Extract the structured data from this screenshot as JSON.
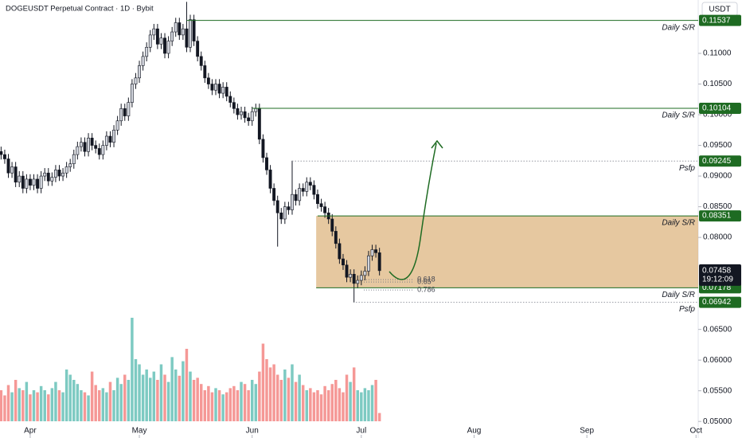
{
  "chart_data": {
    "type": "candlestick",
    "title": "DOGEUSDT Perpetual Contract · 1D · Bybit",
    "unit": "USDT",
    "countdown": "19:12:09",
    "up_color": "#d1d4dc",
    "down_color": "#131722",
    "volume_up_color": "#26a69a",
    "volume_down_color": "#ef5350",
    "grid": false,
    "x": [
      -8,
      -7,
      -6,
      -5,
      -4,
      -3,
      -2,
      -1,
      0,
      1,
      2,
      3,
      4,
      5,
      6,
      7,
      8,
      9,
      10,
      11,
      12,
      13,
      14,
      15,
      16,
      17,
      18,
      19,
      20,
      21,
      22,
      23,
      24,
      25,
      26,
      27,
      28,
      29,
      30,
      31,
      32,
      33,
      34,
      35,
      36,
      37,
      38,
      39,
      40,
      41,
      42,
      43,
      44,
      45,
      46,
      47,
      48,
      49,
      50,
      51,
      52,
      53,
      54,
      55,
      56,
      57,
      58,
      59,
      60,
      61,
      62,
      63,
      64,
      65,
      66,
      67,
      68,
      69,
      70,
      71,
      72,
      73,
      74,
      75,
      76,
      77,
      78,
      79,
      80,
      81,
      82,
      83,
      84,
      85,
      86,
      87,
      88,
      89,
      90,
      91,
      92,
      93,
      94,
      95,
      96
    ],
    "open": [
      0.094,
      0.0935,
      0.0928,
      0.0905,
      0.0915,
      0.089,
      0.09,
      0.088,
      0.0895,
      0.0885,
      0.0895,
      0.088,
      0.09,
      0.0905,
      0.0892,
      0.0898,
      0.091,
      0.09,
      0.0905,
      0.0915,
      0.092,
      0.0935,
      0.0948,
      0.0955,
      0.094,
      0.0962,
      0.095,
      0.0945,
      0.0935,
      0.095,
      0.0965,
      0.0955,
      0.0975,
      0.099,
      0.101,
      0.0998,
      0.102,
      0.105,
      0.106,
      0.108,
      0.1095,
      0.111,
      0.113,
      0.114,
      0.1115,
      0.1125,
      0.11,
      0.112,
      0.1135,
      0.115,
      0.113,
      0.114,
      0.111,
      0.1155,
      0.112,
      0.1095,
      0.108,
      0.106,
      0.105,
      0.104,
      0.105,
      0.1035,
      0.1045,
      0.103,
      0.102,
      0.101,
      0.1,
      0.1005,
      0.0995,
      0.099,
      0.1005,
      0.101,
      0.096,
      0.093,
      0.091,
      0.088,
      0.086,
      0.084,
      0.083,
      0.085,
      0.0845,
      0.087,
      0.086,
      0.088,
      0.0875,
      0.089,
      0.0885,
      0.087,
      0.0855,
      0.085,
      0.084,
      0.083,
      0.081,
      0.079,
      0.0765,
      0.0755,
      0.0735,
      0.074,
      0.0725,
      0.073,
      0.0738,
      0.0745,
      0.077,
      0.078,
      0.0775
    ],
    "high": [
      0.0948,
      0.0943,
      0.0936,
      0.0923,
      0.0923,
      0.0908,
      0.0908,
      0.0903,
      0.0903,
      0.0903,
      0.0903,
      0.0908,
      0.0913,
      0.0913,
      0.0906,
      0.0918,
      0.0918,
      0.0913,
      0.0923,
      0.0928,
      0.0943,
      0.0956,
      0.0963,
      0.0963,
      0.097,
      0.097,
      0.0958,
      0.0953,
      0.0958,
      0.0973,
      0.0973,
      0.0983,
      0.0998,
      0.1018,
      0.1018,
      0.1028,
      0.1058,
      0.1068,
      0.1088,
      0.1103,
      0.1118,
      0.1138,
      0.1148,
      0.1148,
      0.1133,
      0.1133,
      0.1128,
      0.1143,
      0.1158,
      0.1158,
      0.1148,
      0.1184,
      0.1163,
      0.1163,
      0.1128,
      0.1103,
      0.1088,
      0.1068,
      0.1058,
      0.1058,
      0.1058,
      0.1053,
      0.1053,
      0.1038,
      0.1028,
      0.1018,
      0.1013,
      0.1013,
      0.1003,
      0.1013,
      0.1018,
      0.1018,
      0.0968,
      0.0938,
      0.0918,
      0.0888,
      0.0868,
      0.0848,
      0.0858,
      0.0858,
      0.0925,
      0.0878,
      0.0888,
      0.0888,
      0.0898,
      0.0898,
      0.0893,
      0.0878,
      0.0863,
      0.0858,
      0.0848,
      0.0838,
      0.0818,
      0.0798,
      0.0773,
      0.0763,
      0.0748,
      0.0748,
      0.0738,
      0.0746,
      0.0753,
      0.0778,
      0.0788,
      0.0788,
      0.0783
    ],
    "low": [
      0.0927,
      0.092,
      0.0897,
      0.0897,
      0.0882,
      0.0882,
      0.0872,
      0.0872,
      0.0877,
      0.0877,
      0.0872,
      0.0872,
      0.0892,
      0.0884,
      0.0884,
      0.089,
      0.0892,
      0.0892,
      0.0897,
      0.0907,
      0.0912,
      0.0927,
      0.094,
      0.0932,
      0.0932,
      0.0942,
      0.0937,
      0.0927,
      0.0927,
      0.0942,
      0.0947,
      0.0947,
      0.0967,
      0.0982,
      0.099,
      0.099,
      0.1012,
      0.1042,
      0.1052,
      0.1072,
      0.1087,
      0.1102,
      0.1122,
      0.1107,
      0.1107,
      0.1092,
      0.1092,
      0.1112,
      0.1127,
      0.1122,
      0.1122,
      0.1102,
      0.1102,
      0.1112,
      0.1087,
      0.1072,
      0.1052,
      0.1042,
      0.1032,
      0.1032,
      0.1027,
      0.1027,
      0.1022,
      0.1012,
      0.1002,
      0.0992,
      0.0992,
      0.0987,
      0.0982,
      0.0982,
      0.0997,
      0.0952,
      0.0922,
      0.0902,
      0.0872,
      0.0852,
      0.0785,
      0.0822,
      0.0822,
      0.0837,
      0.0837,
      0.0852,
      0.0852,
      0.0867,
      0.0867,
      0.0877,
      0.0862,
      0.0847,
      0.0842,
      0.0832,
      0.0822,
      0.0802,
      0.0782,
      0.0757,
      0.0747,
      0.0727,
      0.0727,
      0.0694,
      0.0717,
      0.0722,
      0.073,
      0.0737,
      0.0762,
      0.0767,
      0.0738
    ],
    "close": [
      0.0935,
      0.0928,
      0.0905,
      0.0915,
      0.089,
      0.09,
      0.088,
      0.0895,
      0.0885,
      0.0895,
      0.088,
      0.09,
      0.0905,
      0.0892,
      0.0898,
      0.091,
      0.09,
      0.0905,
      0.0915,
      0.092,
      0.0935,
      0.0948,
      0.0955,
      0.094,
      0.0962,
      0.095,
      0.0945,
      0.0935,
      0.095,
      0.0965,
      0.0955,
      0.0975,
      0.099,
      0.101,
      0.0998,
      0.102,
      0.105,
      0.106,
      0.108,
      0.1095,
      0.111,
      0.113,
      0.114,
      0.1115,
      0.1125,
      0.11,
      0.112,
      0.1135,
      0.115,
      0.113,
      0.114,
      0.111,
      0.1155,
      0.112,
      0.1095,
      0.108,
      0.106,
      0.105,
      0.104,
      0.105,
      0.1035,
      0.1045,
      0.103,
      0.102,
      0.101,
      0.1,
      0.1005,
      0.0995,
      0.099,
      0.1005,
      0.101,
      0.096,
      0.093,
      0.091,
      0.088,
      0.086,
      0.084,
      0.083,
      0.085,
      0.0845,
      0.087,
      0.086,
      0.088,
      0.0875,
      0.089,
      0.0885,
      0.087,
      0.0855,
      0.085,
      0.084,
      0.083,
      0.081,
      0.079,
      0.0765,
      0.0755,
      0.0735,
      0.074,
      0.0725,
      0.073,
      0.0738,
      0.0745,
      0.077,
      0.078,
      0.0775,
      0.07458
    ],
    "volume": [
      30,
      25,
      35,
      28,
      40,
      32,
      30,
      38,
      26,
      30,
      28,
      34,
      30,
      26,
      32,
      38,
      30,
      28,
      50,
      45,
      40,
      36,
      30,
      28,
      25,
      48,
      35,
      30,
      32,
      28,
      38,
      30,
      42,
      36,
      45,
      40,
      100,
      60,
      55,
      45,
      50,
      42,
      48,
      40,
      55,
      45,
      38,
      62,
      50,
      44,
      58,
      70,
      48,
      40,
      42,
      36,
      30,
      34,
      28,
      32,
      30,
      26,
      28,
      32,
      34,
      30,
      38,
      36,
      30,
      40,
      36,
      48,
      75,
      60,
      52,
      55,
      45,
      40,
      50,
      42,
      55,
      38,
      45,
      35,
      30,
      32,
      28,
      30,
      26,
      34,
      30,
      36,
      40,
      32,
      28,
      45,
      38,
      52,
      30,
      28,
      32,
      30,
      35,
      40,
      8
    ],
    "xlim": [
      -8.3,
      183.6
    ],
    "xticks": [
      {
        "value": 0,
        "label": "Apr"
      },
      {
        "value": 30,
        "label": "May"
      },
      {
        "value": 61,
        "label": "Jun"
      },
      {
        "value": 91,
        "label": "Jul"
      },
      {
        "value": 122,
        "label": "Aug"
      },
      {
        "value": 153,
        "label": "Sep"
      },
      {
        "value": 183,
        "label": "Oct"
      }
    ],
    "ylim": [
      0.0473,
      0.1187
    ],
    "yticks": [
      {
        "value": 0.05,
        "label": "0.05000"
      },
      {
        "value": 0.055,
        "label": "0.05500"
      },
      {
        "value": 0.06,
        "label": "0.06000"
      },
      {
        "value": 0.065,
        "label": "0.06500"
      },
      {
        "value": 0.08,
        "label": "0.08000"
      },
      {
        "value": 0.085,
        "label": "0.08500"
      },
      {
        "value": 0.09,
        "label": "0.09000"
      },
      {
        "value": 0.095,
        "label": "0.09500"
      },
      {
        "value": 0.1,
        "label": "0.10000"
      },
      {
        "value": 0.105,
        "label": "0.10500"
      },
      {
        "value": 0.11,
        "label": "0.11000"
      }
    ],
    "level_color": "#1e6b22",
    "levels": [
      {
        "value": 0.11537,
        "label": "Daily S/R",
        "start": 43,
        "style": "solid"
      },
      {
        "value": 0.10104,
        "label": "Daily S/R",
        "start": 61,
        "style": "solid"
      },
      {
        "value": 0.09245,
        "label": "Psfp",
        "start": 72,
        "style": "dotted"
      },
      {
        "value": 0.08351,
        "label": "Daily S/R",
        "start": 79,
        "style": "solid"
      },
      {
        "value": 0.07178,
        "label": "Daily S/R",
        "start": 78.6,
        "style": "solid"
      },
      {
        "value": 0.06942,
        "label": "Psfp",
        "start": 89.5,
        "style": "dotted"
      }
    ],
    "zone": {
      "low": 0.07178,
      "high": 0.08351,
      "start": 78.6,
      "color": "rgba(222,181,128,0.75)"
    },
    "fib": {
      "values": [
        0.07312,
        0.07273,
        0.07143
      ],
      "labels": [
        "0.618",
        "0.65",
        "0.786"
      ],
      "start": 91.7,
      "end": 105.5
    }
  }
}
